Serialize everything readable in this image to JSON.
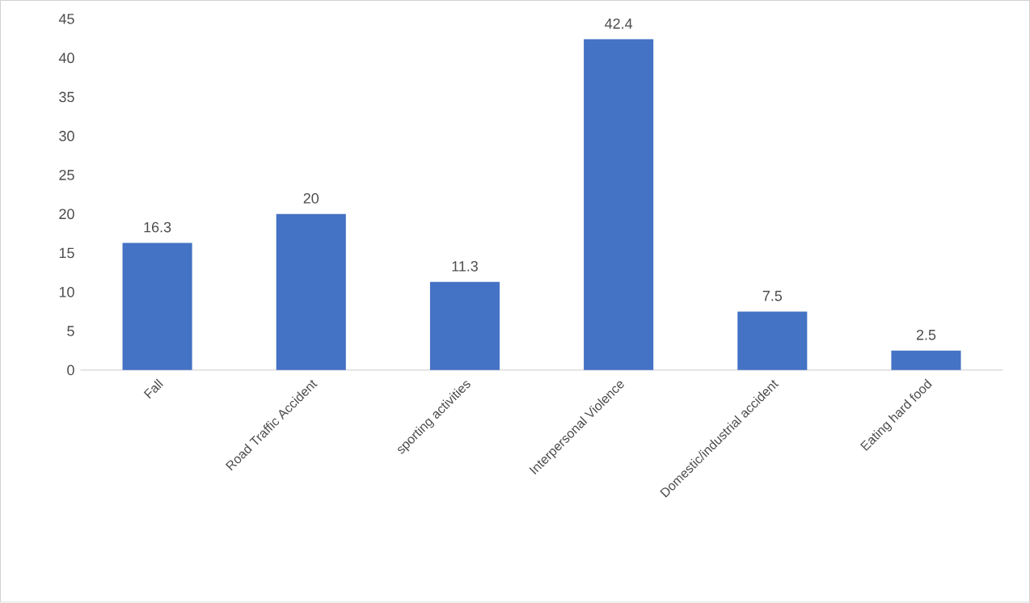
{
  "chart_data": {
    "type": "bar",
    "categories": [
      "Fall",
      "Road Traffic Accident",
      "sporting activities",
      "Interpersonal Violence",
      "Domestic/industrial accident",
      "Eating hard food"
    ],
    "values": [
      16.3,
      20,
      11.3,
      42.4,
      7.5,
      2.5
    ],
    "color": "#4472c4",
    "ylim": [
      0,
      45
    ],
    "yticks": [
      0,
      5,
      10,
      15,
      20,
      25,
      30,
      35,
      40,
      45
    ],
    "data_labels": true
  }
}
